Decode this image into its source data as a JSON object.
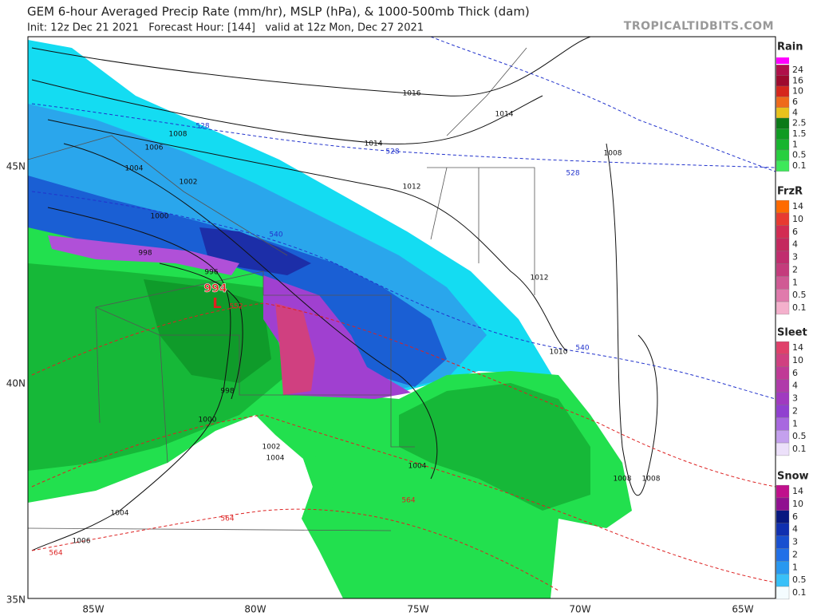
{
  "header": {
    "title": "GEM 6-hour Averaged Precip Rate (mm/hr), MSLP (hPa), & 1000-500mb Thick (dam)",
    "subtitle": "Init: 12z Dec 21 2021   Forecast Hour: [144]   valid at 12z Mon, Dec 27 2021",
    "site": "TROPICALTIDBITS.COM"
  },
  "map": {
    "low": {
      "pressure": "994",
      "symbol": "L"
    },
    "isobar_labels": [
      "1016",
      "1014",
      "1014",
      "1008",
      "1006",
      "1004",
      "1002",
      "1000",
      "998",
      "996",
      "1012",
      "1008",
      "1012",
      "1010",
      "998",
      "1000",
      "1002",
      "1004",
      "1004",
      "1008",
      "1008",
      "1004",
      "1006"
    ],
    "thickness_labels": [
      {
        "text": "528",
        "color": "#2233cc"
      },
      {
        "text": "528",
        "color": "#2233cc"
      },
      {
        "text": "528",
        "color": "#2233cc"
      },
      {
        "text": "540",
        "color": "#2233cc"
      },
      {
        "text": "540",
        "color": "#2233cc"
      },
      {
        "text": "552",
        "color": "#dd2222"
      },
      {
        "text": "564",
        "color": "#dd2222"
      },
      {
        "text": "564",
        "color": "#dd2222"
      },
      {
        "text": "564",
        "color": "#dd2222"
      }
    ],
    "lat_labels": [
      "45N",
      "40N",
      "35N"
    ],
    "lon_labels": [
      "85W",
      "80W",
      "75W",
      "70W",
      "65W"
    ]
  },
  "legends": [
    {
      "title": "Rain",
      "labels": [
        "24",
        "16",
        "10",
        "6",
        "4",
        "2.5",
        "1.5",
        "1",
        "0.5",
        "0.1"
      ],
      "colors": [
        "#b0104a",
        "#9e0a2e",
        "#d6261c",
        "#ef6a1a",
        "#e8c21c",
        "#0b7a18",
        "#0f9b22",
        "#16b52e",
        "#27cf3f",
        "#3ee85a"
      ]
    },
    {
      "title": "FrzR",
      "labels": [
        "14",
        "10",
        "6",
        "4",
        "3",
        "2",
        "1",
        "0.5",
        "0.1"
      ],
      "colors": [
        "#ff6a00",
        "#e83a30",
        "#d22c52",
        "#c4285e",
        "#c02e6e",
        "#c43c7c",
        "#d05a94",
        "#e07aac",
        "#f4b0cc"
      ]
    },
    {
      "title": "Sleet",
      "labels": [
        "14",
        "10",
        "6",
        "4",
        "3",
        "2",
        "1",
        "0.5",
        "0.1"
      ],
      "colors": [
        "#e0406a",
        "#d04080",
        "#c03a96",
        "#b03aaa",
        "#a03ac0",
        "#9040d0",
        "#a868e0",
        "#c4a0ee",
        "#ece0fa"
      ]
    },
    {
      "title": "Snow",
      "labels": [
        "14",
        "10",
        "6",
        "4",
        "3",
        "2",
        "1",
        "0.5",
        "0.1"
      ],
      "colors": [
        "#c0108c",
        "#901090",
        "#081880",
        "#1030b0",
        "#1850d0",
        "#2070e8",
        "#2898f0",
        "#38c0f8",
        "#f4fcff"
      ]
    }
  ]
}
